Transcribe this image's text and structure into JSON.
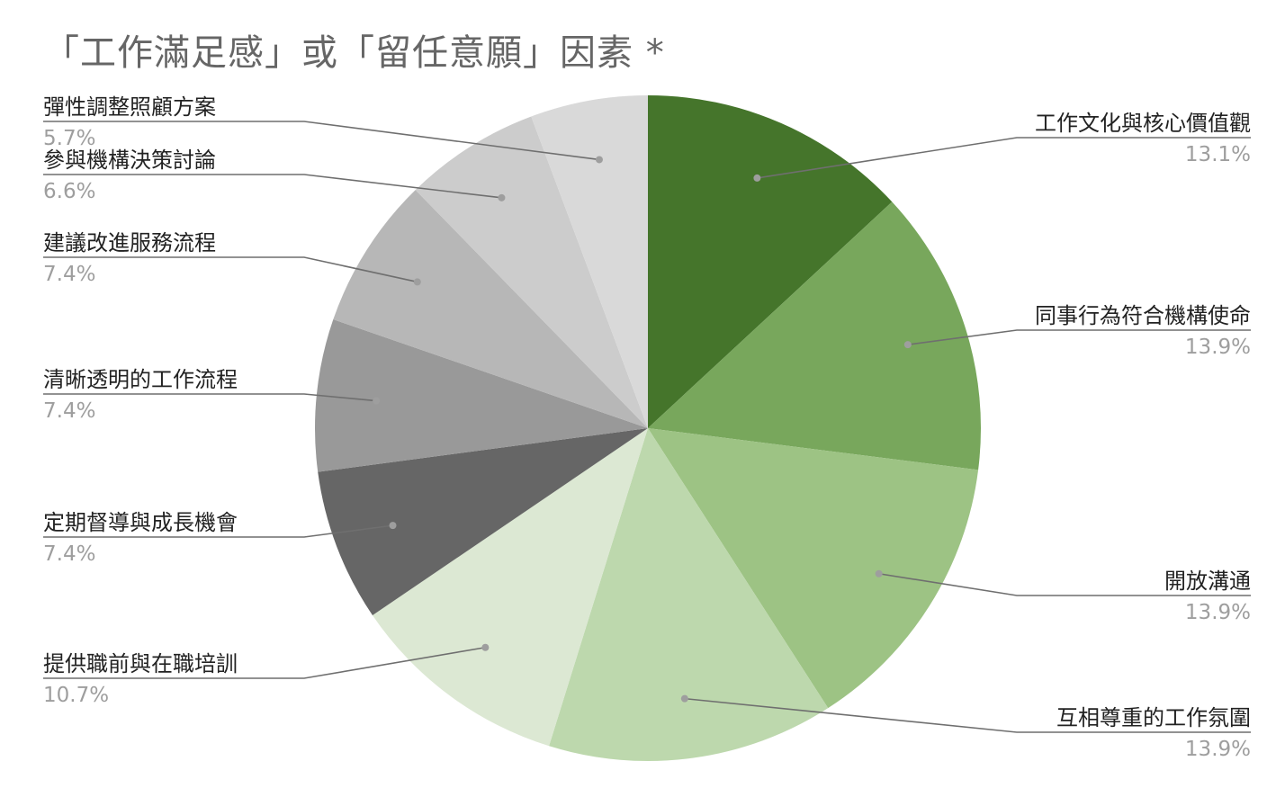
{
  "chart_data": {
    "type": "pie",
    "title": "「工作滿足感」或「留任意願」因素 *",
    "slices": [
      {
        "label": "工作文化與核心價值觀",
        "value": 13.1,
        "value_label": "13.1%",
        "color": "#45752b"
      },
      {
        "label": "同事行為符合機構使命",
        "value": 13.9,
        "value_label": "13.9%",
        "color": "#78a75c"
      },
      {
        "label": "開放溝通",
        "value": 13.9,
        "value_label": "13.9%",
        "color": "#9dc384"
      },
      {
        "label": "互相尊重的工作氛圍",
        "value": 13.9,
        "value_label": "13.9%",
        "color": "#bdd8ad"
      },
      {
        "label": "提供職前與在職培訓",
        "value": 10.7,
        "value_label": "10.7%",
        "color": "#dce8d3"
      },
      {
        "label": "定期督導與成長機會",
        "value": 7.4,
        "value_label": "7.4%",
        "color": "#666666"
      },
      {
        "label": "清晰透明的工作流程",
        "value": 7.4,
        "value_label": "7.4%",
        "color": "#999999"
      },
      {
        "label": "建議改進服務流程",
        "value": 7.4,
        "value_label": "7.4%",
        "color": "#b7b7b7"
      },
      {
        "label": "參與機構決策討論",
        "value": 6.6,
        "value_label": "6.6%",
        "color": "#cccccc"
      },
      {
        "label": "彈性調整照顧方案",
        "value": 5.7,
        "value_label": "5.7%",
        "color": "#d9d9d9"
      }
    ],
    "legend": "labels-on-sides"
  }
}
